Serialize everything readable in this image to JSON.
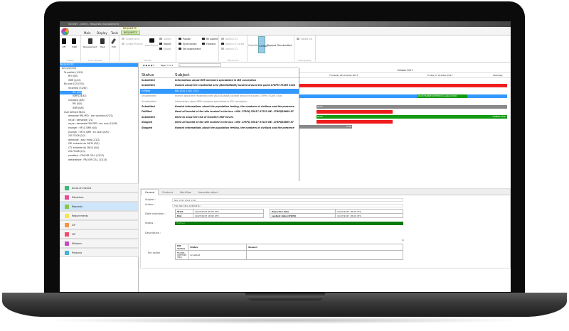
{
  "window": {
    "title": "GEOINT - Client - Requests management"
  },
  "ribbon_tabs": [
    "Main",
    "Display",
    "Tools"
  ],
  "context_tab": {
    "group": "REQUESTS",
    "tab": "REQUESTS"
  },
  "ribbon": {
    "create": {
      "label": "Create",
      "buttons": [
        "RFI",
        "ISRR"
      ]
    },
    "from_request": {
      "label": "From request",
      "buttons": [
        "Requirement",
        "Task"
      ]
    },
    "edit": "Edit",
    "modify": {
      "label": "Modify",
      "items": [
        "Create area",
        "Create Product",
        "Mass Export",
        "Delete",
        "Import",
        "Export"
      ]
    },
    "publish": {
      "items": [
        "Publish",
        "Synchronize",
        "Set assessment",
        "Re submit",
        "Forward"
      ]
    },
    "cse": {
      "label": "CSE action",
      "items": [
        "Add to CTL",
        "Add to CTL draft",
        "Add to CTL"
      ]
    },
    "status": [
      "Submitted",
      "Fulfilled",
      "Stopped",
      "Resubmitted"
    ],
    "cartography": {
      "label": "Cartography",
      "items": [
        "Center on"
      ]
    }
  },
  "tree": {
    "header": "REQUESTS",
    "items": [
      "All (122/153)",
      "To publish (1/1/2)",
      "RFI (0/0)",
      "ISRR (1/10)",
      "By type (122/153)",
      "Incoming (72/40)",
      "RFI (0/0)",
      "ISRR (24/33)",
      "Outgoing (6/6)",
      "RFI (0/0)",
      "ISRR (6/6)",
      "User defined filters",
      "demande FRA PED : non soumise (0/1/1)",
      "reçue : demande (1/1)",
      "reçue : demande FRA PED : enc ours (15/18)",
      "envoyer : RFI & ISRR (0/0)",
      "envoyer : RFI & ISRR : en cours (6/6)",
      "20171026 (2/2)",
      "demande : pour infos (2/1/2)",
      "CRL entrante du 26/10 (0/0)",
      "CTL entrante du 26/10 (0/0)",
      "20171026 (1/1)",
      "emetteur : FRA ISR CELL (13/13)",
      "destinataire : FRA ISR CELL (13/13)"
    ]
  },
  "nav": [
    {
      "label": "Areas of interest",
      "color": "#3cb878"
    },
    {
      "label": "Situations",
      "color": "#e64c9a"
    },
    {
      "label": "Requests",
      "color": "#8cc63f"
    },
    {
      "label": "Requirements",
      "color": "#f2e35a"
    },
    {
      "label": "ICP",
      "color": "#f7944a"
    },
    {
      "label": "CIP",
      "color": "#ee4d6a"
    },
    {
      "label": "Missions",
      "color": "#c24bc0"
    },
    {
      "label": "Products",
      "color": "#45b3d8"
    }
  ],
  "table": {
    "pager": "Page: 1 of 1",
    "search_placeholder": "Q-",
    "columns": [
      "Status",
      "Subject"
    ],
    "rows": [
      {
        "status": "Submitted",
        "subject": "Informations about BFB members specialized in IED conception",
        "style": "b"
      },
      {
        "status": "Submitted",
        "subject": "Humint about the residential area [BLVUSDNAM] located around the point 17RPM 75289 3346",
        "style": "b"
      },
      {
        "status": "Fulfilled",
        "subject": "NAI 1341 1342 1343",
        "style": "sel"
      },
      {
        "status": "Unsubmitted",
        "subject": "Humint about the residential area [BLVUSDNAM] located around the point 17RPM 75289 3346",
        "style": "g"
      },
      {
        "status": "Unsubmitted",
        "subject": "Informations about BFB members specialized in IED conception",
        "style": "g"
      },
      {
        "status": "Submitted",
        "subject": "Humint informations about the population feeling, the numbers of civilians and the presence",
        "style": "b"
      },
      {
        "status": "Fulfilled",
        "subject": "Need all humint of the site located in the box : NW: 17RPQ 53017 87225 NE: 17RPQ58809 87",
        "style": "b"
      },
      {
        "status": "Submitted",
        "subject": "Need to know the risk of transfert ENY forces",
        "style": "b"
      },
      {
        "status": "Stopped",
        "subject": "Need all humint of the site located in the box : NW: 17RPQ 53017 87225 NE: 17RPQ58809 87",
        "style": "b"
      },
      {
        "status": "Stopped",
        "subject": "Humint informations about the population feeling, the numbers of civilians and the presence",
        "style": "b"
      }
    ]
  },
  "gantt": {
    "month": "October 2017",
    "days": [
      "Thursday 26 October 2017",
      "Friday 27 October 2017",
      "Saturday"
    ],
    "labels": {
      "bar_blue_green": "06:00 FRABDE-ICM3T09U Accepted 18:00",
      "grey1": "06:00",
      "green_start": "06:00",
      "green_end": "FRABDE-ICM3T",
      "grey2": "14:00"
    },
    "colors": {
      "submitted": "#ee1c1c",
      "fulfilled": "#139a13",
      "stopped": "#888888",
      "selected": "#3399ff"
    }
  },
  "detail": {
    "tabs": [
      "General",
      "Products",
      "Workflow",
      "Associate object"
    ],
    "subject_label": "Subject :",
    "subject": "NAI 1341 1342 1343",
    "author_label": "Author :",
    "author": "FRA ISR CELL-6360533U",
    "date_label": "Date collection :",
    "start_label": "Start",
    "start": "10/27/2017 06:00 UTC",
    "end_label": "End",
    "end": "10/27/2017 18:00 UTC",
    "expected_label": "Expected date",
    "expected": "10/27/2017 18:00 UTC",
    "latest_label": "Lastest date (LTIOV)",
    "latest": "10/27/2017 18:00 UTC",
    "status_label": "Status :",
    "status": "Fulfilled",
    "status_color": "#0a7a0a",
    "description_label": "Description :",
    "action_label": "For action",
    "action_cols": [
      "ISR means",
      "Status",
      "Reason"
    ],
    "action_row": {
      "means": "FRABDE-ICM3T09U (FRA)",
      "status": "Accepted",
      "reason": ""
    }
  }
}
